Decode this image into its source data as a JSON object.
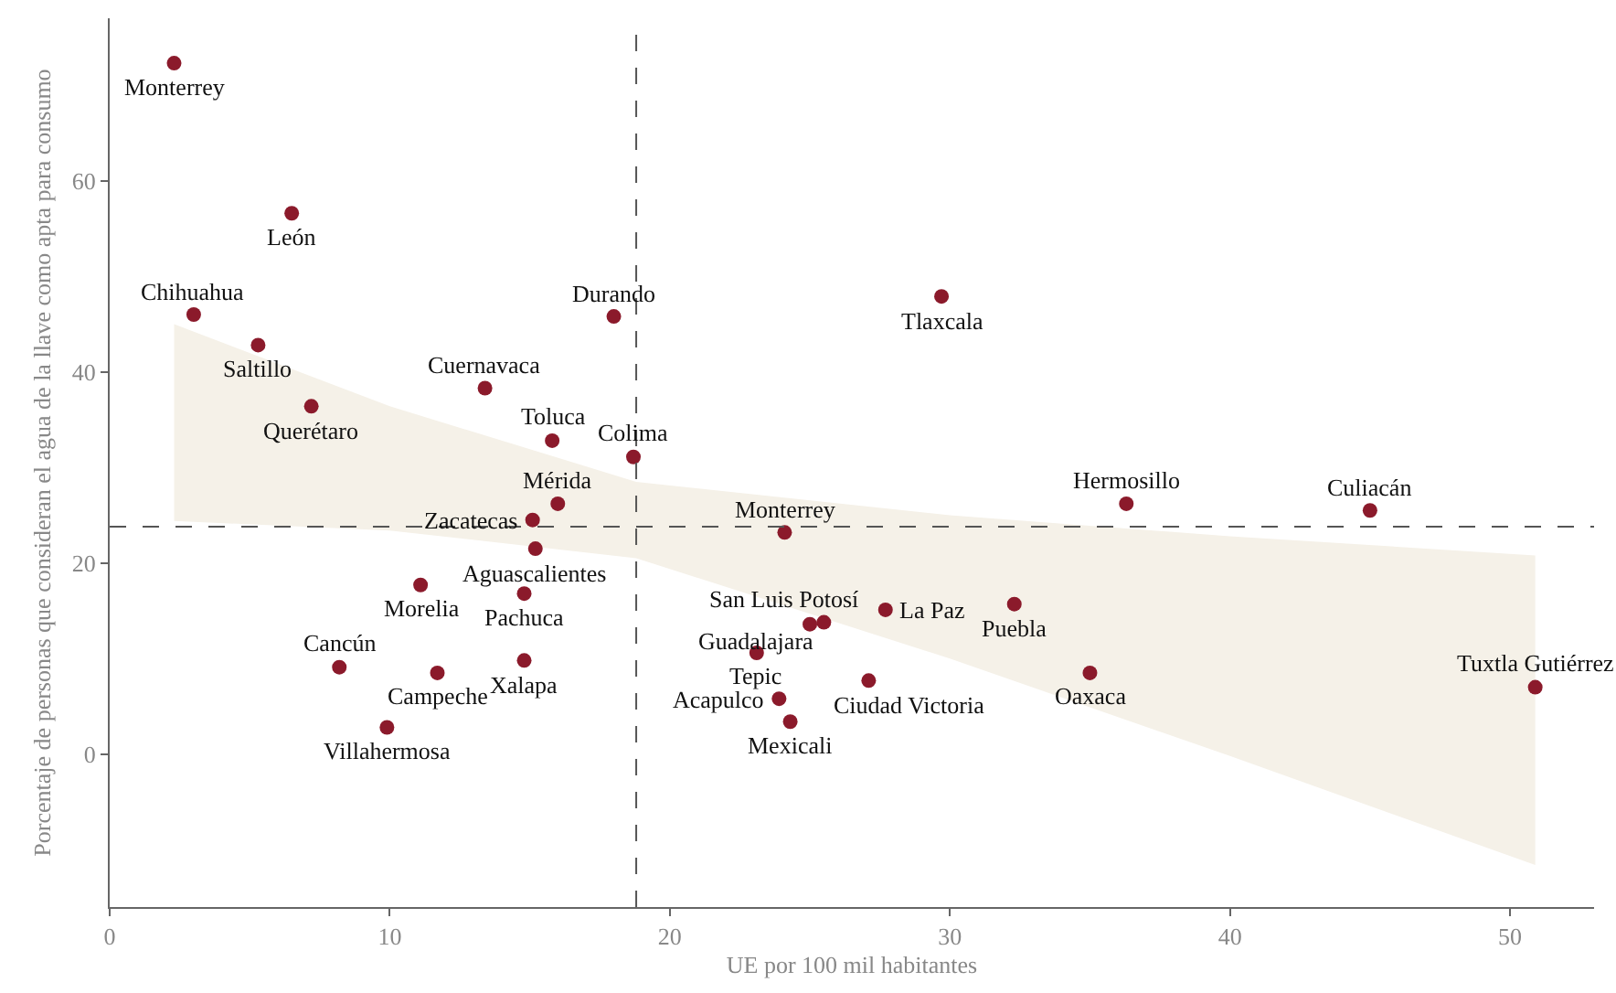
{
  "chart_data": {
    "type": "scatter",
    "xlabel": "UE por 100 mil habitantes",
    "ylabel": "Porcentaje de personas que consideran el agua de la llave como apta para consumo",
    "xlim": [
      0,
      53
    ],
    "ylim": [
      -16,
      77
    ],
    "xticks": [
      0,
      10,
      20,
      30,
      40,
      50
    ],
    "yticks": [
      0,
      20,
      40,
      60
    ],
    "grid": false,
    "marker": "circle",
    "series": [
      {
        "type": "line",
        "color": "#f5f1e8",
        "x": [
          2.3,
          10,
          18.8,
          30,
          40,
          50.9
        ],
        "values": [
          null,
          null,
          null,
          null,
          null,
          null
        ],
        "lower": [
          24.4,
          23.4,
          20.5,
          10.0,
          -0.2,
          -11.6
        ],
        "upper": [
          45.0,
          36.4,
          28.5,
          25.0,
          22.8,
          20.8
        ]
      },
      {
        "color": "#8b1a2b",
        "x": [
          2.3,
          6.5,
          3.0,
          5.3,
          7.2,
          18.0,
          29.7,
          13.4,
          15.8,
          18.7,
          16.0,
          15.1,
          15.2,
          11.1,
          14.8,
          14.8,
          8.2,
          11.7,
          9.9,
          24.1,
          36.3,
          45.0,
          27.7,
          25.5,
          25.0,
          32.3,
          23.1,
          23.9,
          27.1,
          24.3,
          35.0,
          50.9
        ],
        "values": [
          72.3,
          56.6,
          46.0,
          42.8,
          36.4,
          45.8,
          47.9,
          38.3,
          32.8,
          31.1,
          26.2,
          24.5,
          21.5,
          17.7,
          16.8,
          9.8,
          9.1,
          8.5,
          2.8,
          23.2,
          26.2,
          25.5,
          15.1,
          13.8,
          13.6,
          15.7,
          10.6,
          5.8,
          7.7,
          3.4,
          8.5,
          7.0
        ]
      }
    ],
    "annotations": [
      {
        "text": "Monterrey",
        "x": 2.3,
        "y": 72.3
      },
      {
        "text": "León",
        "x": 6.5,
        "y": 56.6
      },
      {
        "text": "Chihuahua",
        "x": 3.0,
        "y": 46.0
      },
      {
        "text": "Saltillo",
        "x": 5.3,
        "y": 42.8
      },
      {
        "text": "Querétaro",
        "x": 7.2,
        "y": 36.4
      },
      {
        "text": "Durando",
        "x": 18.0,
        "y": 45.8
      },
      {
        "text": "Tlaxcala",
        "x": 29.7,
        "y": 47.9
      },
      {
        "text": "Cuernavaca",
        "x": 13.4,
        "y": 38.3
      },
      {
        "text": "Toluca",
        "x": 15.8,
        "y": 32.8
      },
      {
        "text": "Colima",
        "x": 18.7,
        "y": 31.1
      },
      {
        "text": "Mérida",
        "x": 16.0,
        "y": 26.2
      },
      {
        "text": "Zacatecas",
        "x": 15.1,
        "y": 24.5
      },
      {
        "text": "Aguascalientes",
        "x": 15.2,
        "y": 21.5
      },
      {
        "text": "Morelia",
        "x": 11.1,
        "y": 17.7
      },
      {
        "text": "Pachuca",
        "x": 14.8,
        "y": 16.8
      },
      {
        "text": "Xalapa",
        "x": 14.8,
        "y": 9.8
      },
      {
        "text": "Cancún",
        "x": 8.2,
        "y": 9.1
      },
      {
        "text": "Campeche",
        "x": 11.7,
        "y": 8.5
      },
      {
        "text": "Villahermosa",
        "x": 9.9,
        "y": 2.8
      },
      {
        "text": "Monterrey",
        "x": 24.1,
        "y": 23.2
      },
      {
        "text": "Hermosillo",
        "x": 36.3,
        "y": 26.2
      },
      {
        "text": "Culiacán",
        "x": 45.0,
        "y": 25.5
      },
      {
        "text": "La Paz",
        "x": 27.7,
        "y": 15.1
      },
      {
        "text": "San Luis Potosí",
        "x": 25.5,
        "y": 13.8
      },
      {
        "text": "Guadalajara",
        "x": 25.0,
        "y": 13.6
      },
      {
        "text": "Puebla",
        "x": 32.3,
        "y": 15.7
      },
      {
        "text": "Tepic",
        "x": 23.1,
        "y": 10.6
      },
      {
        "text": "Acapulco",
        "x": 23.9,
        "y": 5.8
      },
      {
        "text": "Ciudad Victoria",
        "x": 27.1,
        "y": 7.7
      },
      {
        "text": "Mexicali",
        "x": 24.3,
        "y": 3.4
      },
      {
        "text": "Oaxaca",
        "x": 35.0,
        "y": 8.5
      },
      {
        "text": "Tuxtla Gutiérrez",
        "x": 50.9,
        "y": 7.0
      }
    ],
    "ref_lines": [
      {
        "axis": "x",
        "value": 18.8,
        "color": "#555555",
        "line_style": "dashed"
      },
      {
        "axis": "y",
        "value": 23.8,
        "color": "#555555",
        "line_style": "dashed"
      }
    ]
  }
}
